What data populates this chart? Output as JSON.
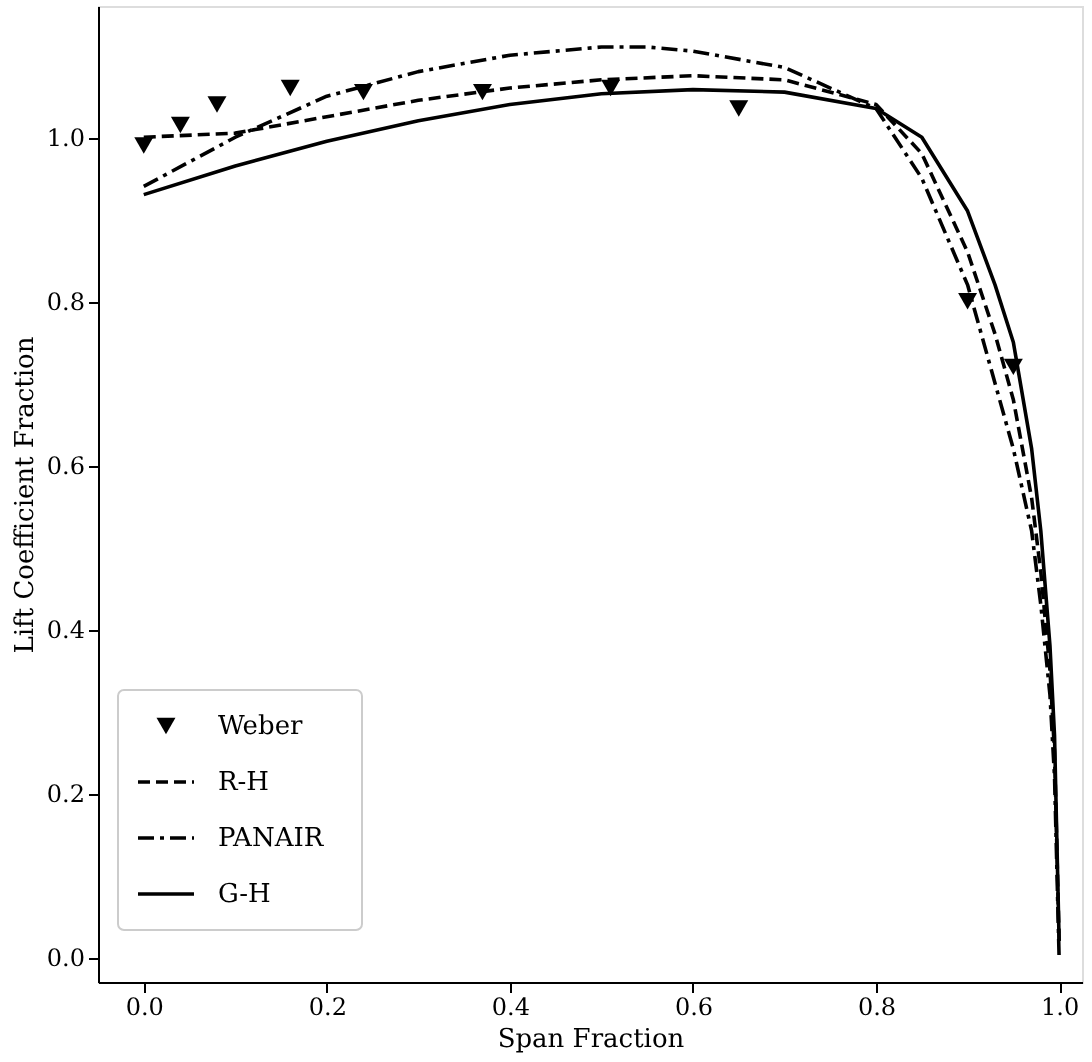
{
  "chart_data": {
    "type": "line",
    "xlabel": "Span Fraction",
    "ylabel": "Lift Coefficient Fraction",
    "xlim": [
      -0.05,
      1.025
    ],
    "ylim": [
      -0.03,
      1.16
    ],
    "xticks": [
      {
        "value": 0,
        "label": "0.0"
      },
      {
        "value": 0.2,
        "label": "0.2"
      },
      {
        "value": 0.4,
        "label": "0.4"
      },
      {
        "value": 0.6,
        "label": "0.6"
      },
      {
        "value": 0.8,
        "label": "0.8"
      },
      {
        "value": 1,
        "label": "1.0"
      }
    ],
    "yticks": [
      {
        "value": 0,
        "label": "0.0"
      },
      {
        "value": 0.2,
        "label": "0.2"
      },
      {
        "value": 0.4,
        "label": "0.4"
      },
      {
        "value": 0.6,
        "label": "0.6"
      },
      {
        "value": 0.8,
        "label": "0.8"
      },
      {
        "value": 1,
        "label": "1.0"
      }
    ],
    "grid": false,
    "legend": "bottom left",
    "series": [
      {
        "name": "Weber",
        "type": "scatter",
        "marker": "triangle-down",
        "color": "#000000",
        "x": [
          0,
          0.04,
          0.08,
          0.16,
          0.24,
          0.37,
          0.51,
          0.65,
          0.9,
          0.95
        ],
        "values": [
          0.99,
          1.015,
          1.04,
          1.06,
          1.055,
          1.055,
          1.06,
          1.035,
          0.8,
          0.72
        ]
      },
      {
        "name": "R-H",
        "line_style": "dashed",
        "color": "#000000",
        "x": [
          0,
          0.1,
          0.2,
          0.3,
          0.4,
          0.5,
          0.6,
          0.7,
          0.8,
          0.85,
          0.9,
          0.93,
          0.95,
          0.97,
          0.98,
          0.99,
          0.995,
          1.0
        ],
        "values": [
          1.0,
          1.005,
          1.025,
          1.045,
          1.06,
          1.07,
          1.075,
          1.07,
          1.04,
          0.98,
          0.86,
          0.76,
          0.68,
          0.56,
          0.47,
          0.35,
          0.25,
          0.02
        ]
      },
      {
        "name": "PANAIR",
        "line_style": "dashdot",
        "color": "#000000",
        "x": [
          0,
          0.05,
          0.1,
          0.2,
          0.3,
          0.4,
          0.5,
          0.55,
          0.6,
          0.7,
          0.8,
          0.85,
          0.9,
          0.93,
          0.95,
          0.97,
          0.98,
          0.99,
          0.995,
          1.0
        ],
        "values": [
          0.94,
          0.97,
          1.0,
          1.05,
          1.08,
          1.1,
          1.11,
          1.11,
          1.105,
          1.085,
          1.035,
          0.95,
          0.82,
          0.7,
          0.62,
          0.52,
          0.43,
          0.32,
          0.22,
          0.0
        ]
      },
      {
        "name": "G-H",
        "line_style": "solid",
        "color": "#000000",
        "x": [
          0,
          0.1,
          0.2,
          0.3,
          0.4,
          0.5,
          0.6,
          0.7,
          0.8,
          0.85,
          0.9,
          0.93,
          0.95,
          0.97,
          0.98,
          0.99,
          0.995,
          1.0
        ],
        "values": [
          0.93,
          0.965,
          0.995,
          1.02,
          1.04,
          1.053,
          1.058,
          1.055,
          1.035,
          1.0,
          0.91,
          0.82,
          0.75,
          0.62,
          0.52,
          0.38,
          0.27,
          0.02
        ]
      }
    ]
  }
}
